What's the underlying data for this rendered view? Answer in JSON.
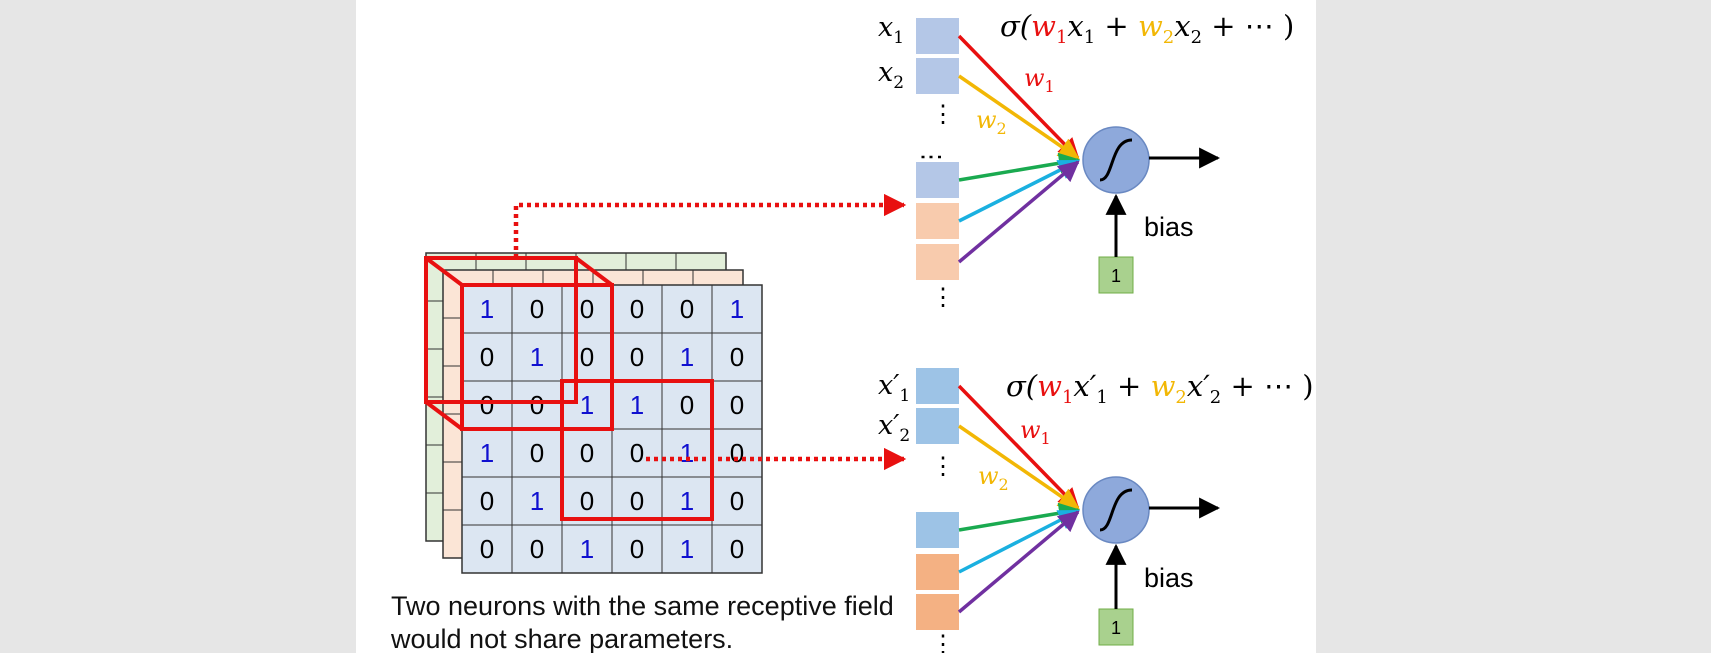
{
  "neuron_top": {
    "input_label_1": "x",
    "input_sub_1": "1",
    "input_label_2": "x",
    "input_sub_2": "2",
    "formula": {
      "sigma": "σ(",
      "w1": "w",
      "w1_sub": "1",
      "x1": "x",
      "x1_sub": "1",
      "plus1": " + ",
      "w2": "w",
      "w2_sub": "2",
      "x2": "x",
      "x2_sub": "2",
      "tail": " + ⋯ )"
    },
    "weight_label_1": "w",
    "weight_sub_1": "1",
    "weight_label_2": "w",
    "weight_sub_2": "2",
    "bias_label": "bias",
    "bias_input": "1"
  },
  "neuron_bottom": {
    "input_label_1": "x′",
    "input_sub_1": "1",
    "input_label_2": "x′",
    "input_sub_2": "2",
    "formula": {
      "sigma": "σ(",
      "w1": "w",
      "w1_sub": "1",
      "x1": "x′",
      "x1_sub": "1",
      "plus1": " + ",
      "w2": "w",
      "w2_sub": "2",
      "x2": "x′",
      "x2_sub": "2",
      "tail": " + ⋯ )"
    },
    "weight_label_1": "w",
    "weight_sub_1": "1",
    "weight_label_2": "w",
    "weight_sub_2": "2",
    "bias_label": "bias",
    "bias_input": "1"
  },
  "image_grid": [
    [
      "1",
      "0",
      "0",
      "0",
      "0",
      "1"
    ],
    [
      "0",
      "1",
      "0",
      "0",
      "1",
      "0"
    ],
    [
      "0",
      "0",
      "1",
      "1",
      "0",
      "0"
    ],
    [
      "1",
      "0",
      "0",
      "0",
      "1",
      "0"
    ],
    [
      "0",
      "1",
      "0",
      "0",
      "1",
      "0"
    ],
    [
      "0",
      "0",
      "1",
      "0",
      "1",
      "0"
    ]
  ],
  "caption": "Two neurons with the same receptive field would not share parameters.",
  "colors": {
    "red": "#e81010",
    "yellow": "#f2b705",
    "green": "#1aaa50",
    "cyan": "#1ab0e0",
    "purple": "#7030a0",
    "blue_digit": "#1010d0",
    "grid_fill": "#dce6f2",
    "neuron": "#8ea9db"
  }
}
